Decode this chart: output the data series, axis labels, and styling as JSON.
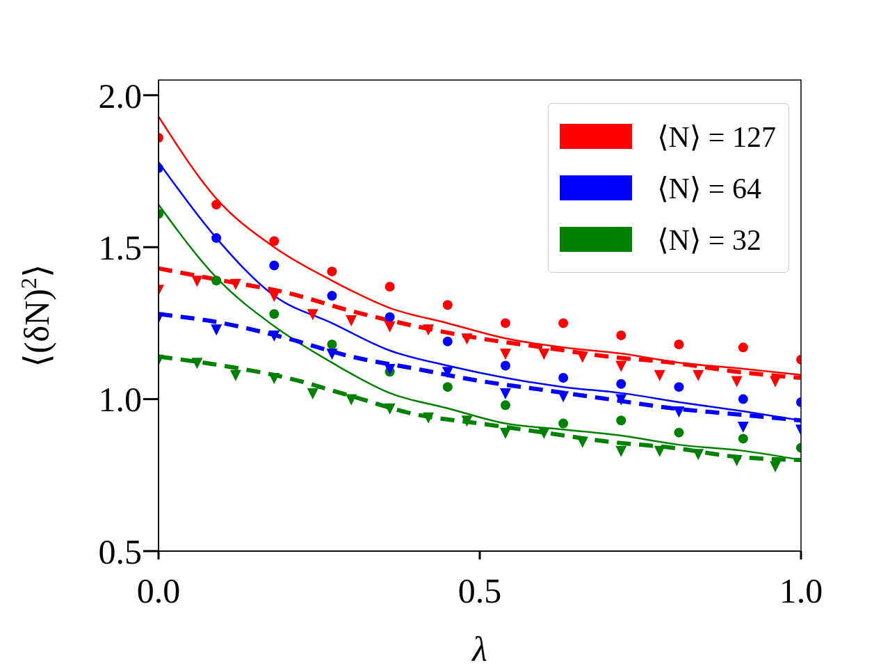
{
  "chart_data": {
    "type": "line",
    "xlabel": "λ",
    "ylabel": "⟨(δN)$^{2}$⟩",
    "xlim": [
      0,
      1
    ],
    "ylim": [
      0.5,
      2.05
    ],
    "xticks": [
      {
        "value": 0,
        "label": "0.0"
      },
      0.5,
      {
        "value": 1,
        "label": "1.0"
      }
    ],
    "yticks": [
      0.5,
      {
        "value": 1,
        "label": "1.0"
      },
      1.5,
      {
        "value": 2,
        "label": "2.0"
      }
    ],
    "grid": false,
    "legend": "top right",
    "series": [
      {
        "name": "⟨N⟩ = 127",
        "color": "#ff0000",
        "marker": "none",
        "line_style": "solid",
        "x": [
          0,
          0.09,
          0.18,
          0.27,
          0.36,
          0.45,
          0.54,
          0.63,
          0.72,
          0.81,
          0.91,
          1.0
        ],
        "values": [
          1.93,
          1.66,
          1.5,
          1.39,
          1.3,
          1.25,
          1.2,
          1.17,
          1.15,
          1.12,
          1.1,
          1.08
        ]
      },
      {
        "name": "⟨N⟩ = 64",
        "color": "#0000ff",
        "marker": "none",
        "line_style": "solid",
        "x": [
          0,
          0.09,
          0.18,
          0.27,
          0.36,
          0.45,
          0.54,
          0.63,
          0.72,
          0.81,
          0.91,
          1.0
        ],
        "values": [
          1.78,
          1.53,
          1.34,
          1.25,
          1.16,
          1.11,
          1.07,
          1.04,
          1.02,
          0.99,
          0.96,
          0.93
        ]
      },
      {
        "name": "⟨N⟩ = 32",
        "color": "#008000",
        "marker": "none",
        "line_style": "solid",
        "x": [
          0,
          0.09,
          0.18,
          0.27,
          0.36,
          0.45,
          0.54,
          0.63,
          0.72,
          0.81,
          0.91,
          1.0
        ],
        "values": [
          1.64,
          1.4,
          1.24,
          1.12,
          1.02,
          0.97,
          0.92,
          0.9,
          0.88,
          0.85,
          0.83,
          0.8
        ]
      },
      {
        "color": "#ff0000",
        "marker": "none",
        "line_style": "dashed",
        "x": [
          0,
          0.1,
          0.2,
          0.3,
          0.4,
          0.5,
          0.6,
          0.7,
          0.8,
          0.9,
          1.0
        ],
        "values": [
          1.43,
          1.39,
          1.35,
          1.29,
          1.24,
          1.2,
          1.17,
          1.14,
          1.12,
          1.09,
          1.07
        ]
      },
      {
        "color": "#0000ff",
        "marker": "none",
        "line_style": "dashed",
        "x": [
          0,
          0.1,
          0.2,
          0.3,
          0.4,
          0.5,
          0.6,
          0.7,
          0.8,
          0.9,
          1.0
        ],
        "values": [
          1.28,
          1.25,
          1.2,
          1.14,
          1.1,
          1.06,
          1.03,
          1.0,
          0.97,
          0.95,
          0.93
        ]
      },
      {
        "color": "#008000",
        "marker": "none",
        "line_style": "dashed",
        "x": [
          0,
          0.1,
          0.2,
          0.3,
          0.4,
          0.5,
          0.6,
          0.7,
          0.8,
          0.9,
          1.0
        ],
        "values": [
          1.14,
          1.11,
          1.07,
          1.01,
          0.95,
          0.92,
          0.89,
          0.86,
          0.84,
          0.81,
          0.8
        ]
      },
      {
        "type": "scatter",
        "color": "#ff0000",
        "marker": "circle",
        "x": [
          0,
          0.09,
          0.18,
          0.27,
          0.36,
          0.45,
          0.54,
          0.63,
          0.72,
          0.81,
          0.91,
          1.0
        ],
        "values": [
          1.86,
          1.64,
          1.52,
          1.42,
          1.37,
          1.31,
          1.25,
          1.25,
          1.21,
          1.18,
          1.17,
          1.13
        ]
      },
      {
        "type": "scatter",
        "color": "#0000ff",
        "marker": "circle",
        "x": [
          0,
          0.09,
          0.18,
          0.27,
          0.36,
          0.45,
          0.54,
          0.63,
          0.72,
          0.81,
          0.91,
          1.0
        ],
        "values": [
          1.76,
          1.53,
          1.44,
          1.34,
          1.27,
          1.19,
          1.11,
          1.07,
          1.05,
          1.04,
          1.0,
          0.99
        ]
      },
      {
        "type": "scatter",
        "color": "#008000",
        "marker": "circle",
        "x": [
          0,
          0.09,
          0.18,
          0.27,
          0.36,
          0.45,
          0.54,
          0.63,
          0.72,
          0.81,
          0.91,
          1.0
        ],
        "values": [
          1.61,
          1.39,
          1.28,
          1.18,
          1.09,
          1.04,
          0.98,
          0.92,
          0.93,
          0.89,
          0.87,
          0.84
        ]
      },
      {
        "type": "scatter",
        "color": "#ff0000",
        "marker": "triangle",
        "x": [
          0,
          0.06,
          0.12,
          0.18,
          0.24,
          0.3,
          0.36,
          0.42,
          0.48,
          0.54,
          0.6,
          0.66,
          0.72,
          0.78,
          0.84,
          0.9,
          0.96
        ],
        "values": [
          1.36,
          1.39,
          1.38,
          1.34,
          1.28,
          1.26,
          1.24,
          1.23,
          1.2,
          1.15,
          1.15,
          1.14,
          1.11,
          1.08,
          1.08,
          1.06,
          1.06
        ]
      },
      {
        "type": "scatter",
        "color": "#0000ff",
        "marker": "triangle",
        "x": [
          0,
          0.09,
          0.18,
          0.27,
          0.36,
          0.45,
          0.54,
          0.63,
          0.72,
          0.81,
          0.91,
          1.0
        ],
        "values": [
          1.27,
          1.23,
          1.21,
          1.15,
          1.1,
          1.09,
          1.02,
          1.01,
          1.0,
          0.96,
          0.91,
          0.9
        ]
      },
      {
        "type": "scatter",
        "color": "#008000",
        "marker": "triangle",
        "x": [
          0,
          0.06,
          0.12,
          0.18,
          0.24,
          0.3,
          0.36,
          0.42,
          0.48,
          0.54,
          0.6,
          0.66,
          0.72,
          0.78,
          0.84,
          0.9,
          0.96
        ],
        "values": [
          1.13,
          1.12,
          1.08,
          1.07,
          1.02,
          1.0,
          0.97,
          0.94,
          0.93,
          0.89,
          0.89,
          0.86,
          0.83,
          0.83,
          0.82,
          0.8,
          0.78
        ]
      }
    ]
  }
}
